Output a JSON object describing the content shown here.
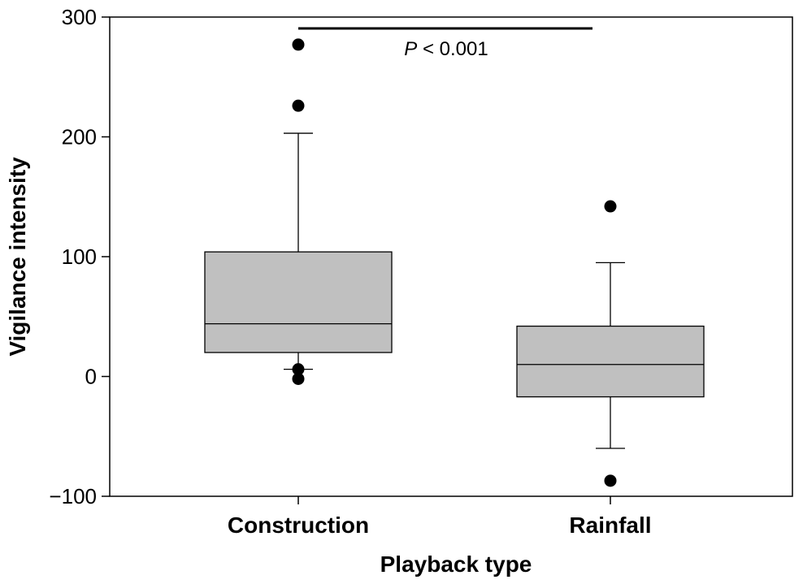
{
  "chart_data": {
    "type": "box",
    "xlabel": "Playback type",
    "ylabel": "Vigilance intensity",
    "ylim": [
      -100,
      300
    ],
    "yticks": [
      -100,
      0,
      100,
      200,
      300
    ],
    "ytick_labels": [
      "−100",
      "0",
      "100",
      "200",
      "300"
    ],
    "categories": [
      "Construction",
      "Rainfall"
    ],
    "boxes": [
      {
        "category": "Construction",
        "whisker_low": 6,
        "q1": 20,
        "median": 44,
        "q3": 104,
        "whisker_high": 203,
        "outliers": [
          277,
          226,
          6,
          -2
        ]
      },
      {
        "category": "Rainfall",
        "whisker_low": -60,
        "q1": -17,
        "median": 10,
        "q3": 42,
        "whisker_high": 95,
        "outliers": [
          142,
          -87
        ]
      }
    ],
    "box_fill": "#c0c0c0",
    "annotation": {
      "p_symbol": "P",
      "p_text": " < 0.001"
    },
    "grid": false,
    "legend": "none"
  }
}
